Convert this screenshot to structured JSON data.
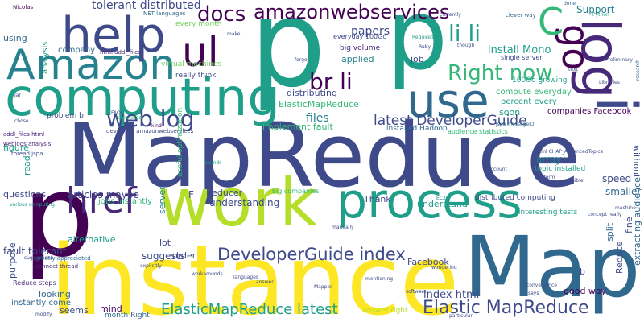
{
  "palette": [
    "#440154",
    "#482878",
    "#3e4a89",
    "#31688e",
    "#26828e",
    "#1f9e89",
    "#35b779",
    "#6ece58",
    "#b5de2b",
    "#fde725"
  ],
  "words": {
    "mapreduce": "MapReduce",
    "instance": "instance",
    "map": "Map",
    "work": "work",
    "process": "process",
    "computing": "computing",
    "amazon": "Amazon",
    "help": "help",
    "p_main": "p",
    "p_top": "p",
    "p_left": "p",
    "log": "log",
    "use": "use",
    "ul": "ul",
    "amazonwebservices": "amazonwebservices",
    "c": "C",
    "li_li": "li li",
    "right_now": "Right now",
    "br_li": "br li",
    "web_log": "web log",
    "href": "href",
    "i": "i",
    "go": "go",
    "elastic_mapreduce": "Elastic MapReduce",
    "docs": "docs",
    "developerguide_index": "DeveloperGuide index",
    "latest_developerguide": "latest DeveloperGuide",
    "elasticmapreduce_latest": "ElasticMapReduce latest",
    "instance_caption": "instance"
  },
  "small_words": [
    "tolerant distributed",
    "NET languages",
    "every month",
    "papers",
    "Support",
    "Nicolas",
    "using",
    "analysis",
    "company",
    "html addl_files",
    "virtual machines",
    "really think",
    "install Mono",
    "single server",
    "job",
    "applied",
    "big volume",
    "everyday 100Go",
    "distributing",
    "ElasticMapReduce",
    "implement fault",
    "files",
    "figure",
    "read",
    "questions",
    "articles maybe",
    "Reducer",
    "understanding",
    "Thank",
    "big companies",
    "installed Hadoop",
    "audience statistics",
    "jspa messageID",
    "compute everyday",
    "percent every",
    "companies Facebook",
    "100Go growing",
    "soon",
    "array",
    "topic installed",
    "speed",
    "smaller",
    "without",
    "html CHAP_AdvancedTopics",
    "jobs instantly",
    "server",
    "alternative",
    "lot",
    "order",
    "suggests",
    "understand",
    "Facebook",
    "distributed computing",
    "interesting tests",
    "split",
    "Reduce",
    "fine",
    "extracting audience",
    "concept really",
    "fault tolerant",
    "greatly appreciated",
    "connect thread",
    "Reduce steps",
    "instantly come",
    "looking",
    "seems",
    "mind",
    "month Right",
    "answer right",
    "good way",
    "problem b",
    "addl_files html",
    "weblogs analysis",
    "thread jspa",
    "developer amazonwebservices",
    "useful optimization",
    "kind",
    "F",
    "b",
    "index html",
    "purpose",
    "various computing",
    "EC2",
    "Preliminary",
    "research",
    "clever way",
    "done",
    "though",
    "Ruby",
    "Required",
    "forgo",
    "make",
    "Jar",
    "manually",
    "sounds",
    "account",
    "platform",
    "Perl",
    "FAQs",
    "chose",
    "converted",
    "suggestions",
    "explicitly",
    "machine",
    "possible",
    "Mapper",
    "mentioning",
    "wondering",
    "workarounds",
    "languages",
    "answer",
    "software",
    "convenience",
    "says",
    "particular",
    "modify",
    "Python",
    "currently",
    "Libraries",
    "text",
    "URL",
    "tags"
  ]
}
